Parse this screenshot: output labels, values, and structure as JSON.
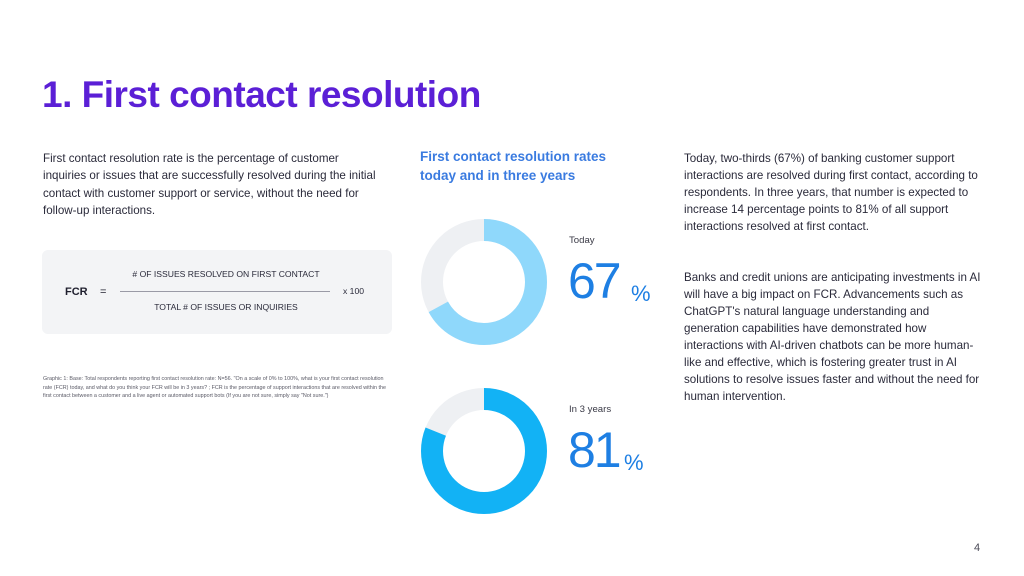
{
  "page": {
    "title": "1. First contact resolution",
    "intro": "First contact resolution rate is the percentage of customer inquiries or issues that are successfully resolved during the initial contact with customer support or service, without the need for follow-up interactions.",
    "page_number": "4"
  },
  "formula": {
    "lhs": "FCR",
    "eq": "=",
    "numerator": "# OF ISSUES RESOLVED ON FIRST CONTACT",
    "denominator": "TOTAL # OF ISSUES OR INQUIRIES",
    "multiplier": "x 100"
  },
  "footnote": "Graphic 1: Base: Total respondents reporting first contact resolution rate: N=56. \"On a scale of 0% to 100%, what is your first contact resolution rate (FCR) today, and what do you think your FCR will be in 3 years? ; FCR is the percentage of support interactions that are resolved within the first contact between a customer and a live agent or automated support bots (If you are not sure, simply say \"Not sure.\")",
  "right": {
    "p1": "Today, two-thirds (67%) of banking customer support interactions are resolved during first contact, according to respondents. In three years, that number is expected to increase 14 percentage points to 81% of all support interactions resolved at first contact.",
    "p2": "Banks and credit unions are anticipating investments in AI will have a big impact on FCR. Advancements such as ChatGPT's natural language understanding and generation capabilities have demonstrated how interactions with AI-driven chatbots can be more human-like and effective, which is fostering greater trust in AI solutions to resolve issues faster and without the need for human intervention."
  },
  "chart_data": {
    "type": "pie",
    "title": "First contact resolution rates today and in three years",
    "charts": [
      {
        "label": "Today",
        "value": 67,
        "display": "67",
        "unit": "%",
        "color": "#8fd8fb",
        "track": "#eef0f3"
      },
      {
        "label": "In 3 years",
        "value": 81,
        "display": "81",
        "unit": "%",
        "color": "#12b2f5",
        "track": "#eef0f3"
      }
    ]
  }
}
